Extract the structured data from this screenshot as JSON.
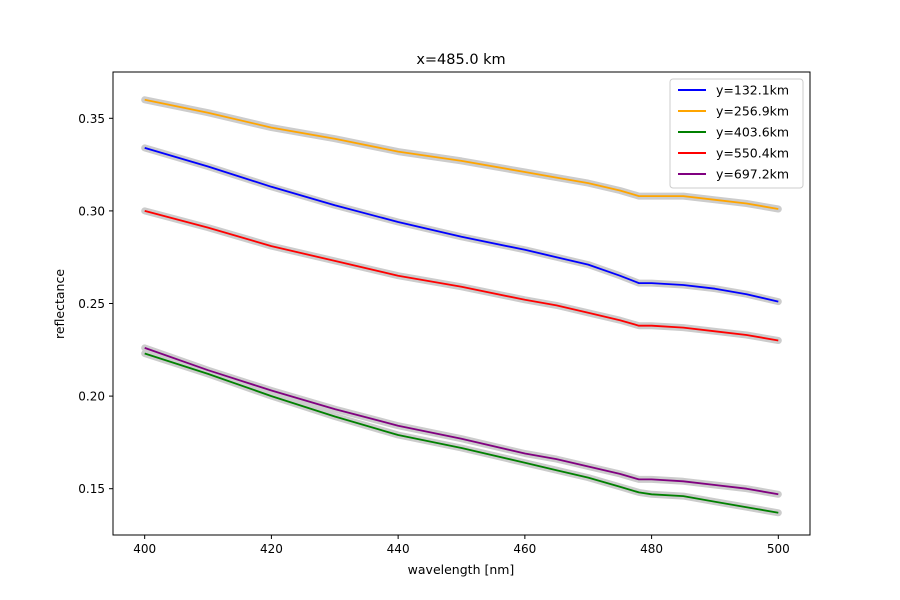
{
  "chart_data": {
    "type": "line",
    "title": "x=485.0 km",
    "xlabel": "wavelength [nm]",
    "ylabel": "reflectance",
    "xlim": [
      395,
      505
    ],
    "ylim": [
      0.125,
      0.375
    ],
    "xticks": [
      400,
      420,
      440,
      460,
      480,
      500
    ],
    "xtick_labels": [
      "400",
      "420",
      "440",
      "460",
      "480",
      "500"
    ],
    "yticks": [
      0.15,
      0.2,
      0.25,
      0.3,
      0.35
    ],
    "ytick_labels": [
      "0.15",
      "0.20",
      "0.25",
      "0.30",
      "0.35"
    ],
    "grid": false,
    "legend_position": "top-right",
    "band_color": "#cccccc",
    "x": [
      400,
      410,
      420,
      430,
      440,
      450,
      460,
      465,
      470,
      475,
      478,
      480,
      485,
      490,
      495,
      500
    ],
    "series": [
      {
        "name": "y=132.1km",
        "color": "#0000ff",
        "values": [
          0.334,
          0.324,
          0.313,
          0.303,
          0.294,
          0.286,
          0.279,
          0.275,
          0.271,
          0.265,
          0.261,
          0.261,
          0.26,
          0.258,
          0.255,
          0.251
        ]
      },
      {
        "name": "y=256.9km",
        "color": "#ffa500",
        "values": [
          0.36,
          0.353,
          0.345,
          0.339,
          0.332,
          0.327,
          0.321,
          0.318,
          0.315,
          0.311,
          0.308,
          0.308,
          0.308,
          0.306,
          0.304,
          0.301
        ]
      },
      {
        "name": "y=403.6km",
        "color": "#008000",
        "values": [
          0.223,
          0.212,
          0.2,
          0.189,
          0.179,
          0.172,
          0.164,
          0.16,
          0.156,
          0.151,
          0.148,
          0.147,
          0.146,
          0.143,
          0.14,
          0.137
        ]
      },
      {
        "name": "y=550.4km",
        "color": "#ff0000",
        "values": [
          0.3,
          0.291,
          0.281,
          0.273,
          0.265,
          0.259,
          0.252,
          0.249,
          0.245,
          0.241,
          0.238,
          0.238,
          0.237,
          0.235,
          0.233,
          0.23
        ]
      },
      {
        "name": "y=697.2km",
        "color": "#800080",
        "values": [
          0.226,
          0.214,
          0.203,
          0.193,
          0.184,
          0.177,
          0.169,
          0.166,
          0.162,
          0.158,
          0.155,
          0.155,
          0.154,
          0.152,
          0.15,
          0.147
        ]
      }
    ]
  }
}
